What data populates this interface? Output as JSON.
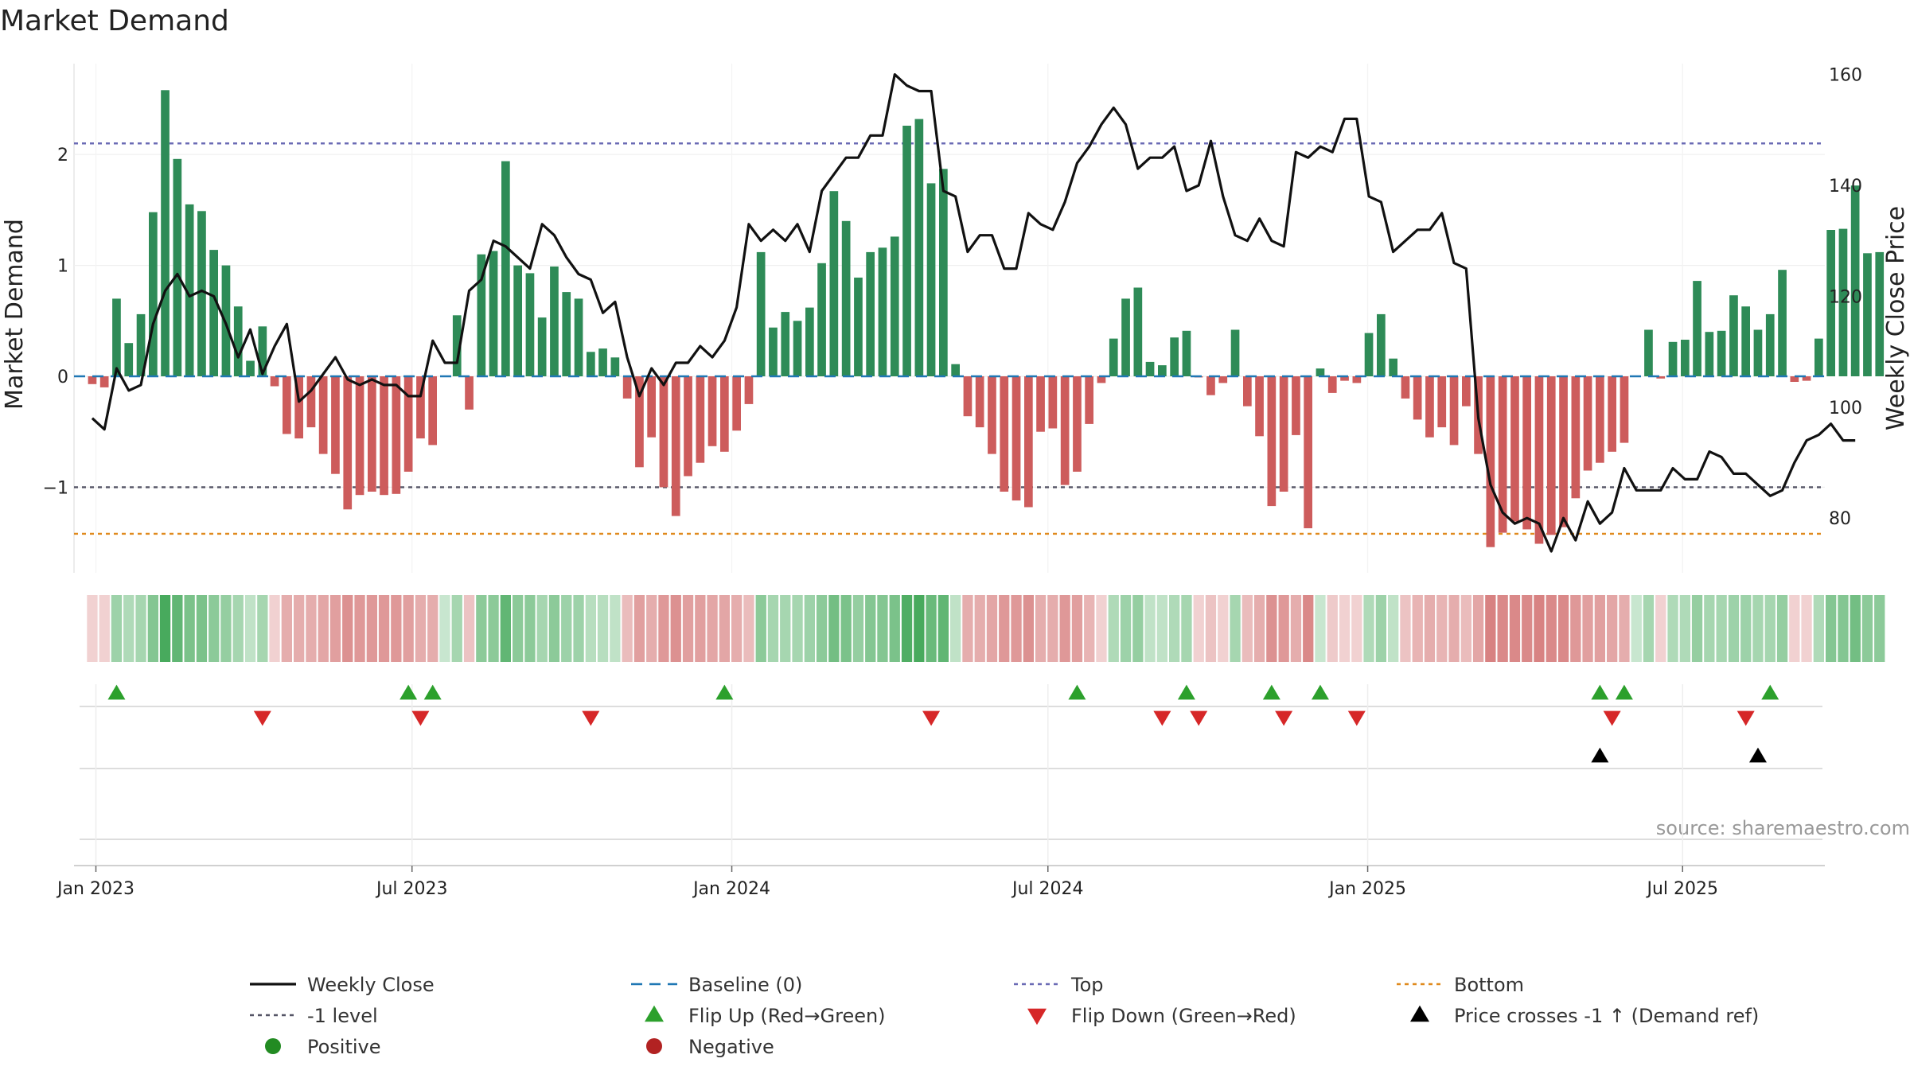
{
  "chart_data": {
    "type": "bar+line",
    "title": "Market Demand",
    "ylabel_left": "Market Demand",
    "ylabel_right": "Weekly Close Price",
    "ylim_left": [
      -1.75,
      2.85
    ],
    "yticks_left": [
      {
        "v": 2,
        "label": "2"
      },
      {
        "v": 1,
        "label": "1"
      },
      {
        "v": 0,
        "label": "0"
      },
      {
        "v": -1,
        "label": "−1"
      }
    ],
    "ylim_right": [
      71,
      164
    ],
    "yticks_right": [
      {
        "v": 160,
        "label": "160"
      },
      {
        "v": 140,
        "label": "140"
      },
      {
        "v": 120,
        "label": "120"
      },
      {
        "v": 100,
        "label": "100"
      },
      {
        "v": 80,
        "label": "80"
      }
    ],
    "x_range": [
      -1.5,
      142.5
    ],
    "x_ticks": [
      {
        "label": "Jan 2023",
        "i": 0.3
      },
      {
        "label": "Jul 2023",
        "i": 26.3
      },
      {
        "label": "Jan 2024",
        "i": 52.6
      },
      {
        "label": "Jul 2024",
        "i": 78.6
      },
      {
        "label": "Jan 2025",
        "i": 104.9
      },
      {
        "label": "Jul 2025",
        "i": 130.8
      }
    ],
    "levels": {
      "top": 2.1,
      "minus_one": -1.0,
      "bottom": -1.42
    },
    "demand": [
      -0.07,
      -0.1,
      0.7,
      0.3,
      0.56,
      1.48,
      2.58,
      1.96,
      1.55,
      1.49,
      1.14,
      1.0,
      0.63,
      0.14,
      0.45,
      -0.09,
      -0.52,
      -0.56,
      -0.46,
      -0.7,
      -0.88,
      -1.2,
      -1.07,
      -1.04,
      -1.07,
      -1.06,
      -0.86,
      -0.56,
      -0.62,
      0.0,
      0.55,
      -0.3,
      1.1,
      1.13,
      1.94,
      1.0,
      0.93,
      0.53,
      0.99,
      0.76,
      0.7,
      0.22,
      0.25,
      0.17,
      -0.2,
      -0.82,
      -0.55,
      -1.0,
      -1.26,
      -0.9,
      -0.78,
      -0.63,
      -0.68,
      -0.49,
      -0.25,
      1.12,
      0.44,
      0.58,
      0.5,
      0.62,
      1.02,
      1.67,
      1.4,
      0.89,
      1.12,
      1.16,
      1.26,
      2.26,
      2.32,
      1.74,
      1.87,
      0.11,
      -0.36,
      -0.46,
      -0.7,
      -1.04,
      -1.12,
      -1.18,
      -0.5,
      -0.47,
      -0.98,
      -0.86,
      -0.43,
      -0.06,
      0.34,
      0.7,
      0.8,
      0.13,
      0.1,
      0.35,
      0.41,
      -0.01,
      -0.17,
      -0.06,
      0.42,
      -0.27,
      -0.54,
      -1.17,
      -1.04,
      -0.53,
      -1.37,
      0.07,
      -0.15,
      -0.04,
      -0.06,
      0.39,
      0.56,
      0.16,
      -0.2,
      -0.39,
      -0.55,
      -0.46,
      -0.62,
      -0.27,
      -0.7,
      -1.54,
      -1.41,
      -1.31,
      -1.38,
      -1.51,
      -1.43,
      -1.36,
      -1.1,
      -0.85,
      -0.78,
      -0.68,
      -0.6,
      0.0,
      0.42,
      -0.02,
      0.31,
      0.33,
      0.86,
      0.4,
      0.41,
      0.73,
      0.63,
      0.42,
      0.56,
      0.96,
      -0.05,
      -0.04,
      0.34,
      1.32,
      1.33,
      1.72,
      1.11,
      1.12
    ],
    "close": [
      98,
      96,
      107,
      103,
      104,
      115,
      121,
      124,
      120,
      121,
      120,
      115,
      109,
      114,
      106,
      111,
      115,
      101,
      103,
      106,
      109,
      105,
      104,
      105,
      104,
      104,
      102,
      102,
      112,
      108,
      108,
      121,
      123,
      130,
      129,
      127,
      125,
      133,
      131,
      127,
      124,
      123,
      117,
      119,
      109,
      102,
      107,
      104,
      108,
      108,
      111,
      109,
      112,
      118,
      133,
      130,
      132,
      130,
      133,
      128,
      139,
      142,
      145,
      145,
      149,
      149,
      160,
      158,
      157,
      157,
      139,
      138,
      128,
      131,
      131,
      125,
      125,
      135,
      133,
      132,
      137,
      144,
      147,
      151,
      154,
      151,
      143,
      145,
      145,
      147,
      139,
      140,
      148,
      138,
      131,
      130,
      134,
      130,
      129,
      146,
      145,
      147,
      146,
      152,
      152,
      138,
      137,
      128,
      130,
      132,
      132,
      135,
      126,
      125,
      98,
      86,
      81,
      79,
      80,
      79,
      74,
      80,
      76,
      83,
      79,
      81,
      89,
      85,
      85,
      85,
      89,
      87,
      87,
      92,
      91,
      88,
      88,
      86,
      84,
      85,
      90,
      94,
      95,
      97,
      94,
      94
    ],
    "color_strip_intensity": [
      0.1,
      0.1,
      0.35,
      0.25,
      0.3,
      0.5,
      0.85,
      0.7,
      0.55,
      0.55,
      0.45,
      0.4,
      0.3,
      0.15,
      0.3,
      0.1,
      0.35,
      0.35,
      0.35,
      0.4,
      0.45,
      0.55,
      0.5,
      0.5,
      0.5,
      0.5,
      0.45,
      0.35,
      0.35,
      0.1,
      0.3,
      0.2,
      0.45,
      0.45,
      0.7,
      0.45,
      0.45,
      0.3,
      0.45,
      0.35,
      0.35,
      0.2,
      0.2,
      0.15,
      0.25,
      0.45,
      0.35,
      0.5,
      0.55,
      0.45,
      0.45,
      0.4,
      0.4,
      0.35,
      0.25,
      0.45,
      0.3,
      0.3,
      0.3,
      0.35,
      0.45,
      0.6,
      0.55,
      0.4,
      0.5,
      0.5,
      0.55,
      0.8,
      0.85,
      0.65,
      0.7,
      0.15,
      0.35,
      0.35,
      0.4,
      0.5,
      0.5,
      0.55,
      0.35,
      0.35,
      0.5,
      0.45,
      0.3,
      0.1,
      0.25,
      0.35,
      0.4,
      0.15,
      0.15,
      0.25,
      0.3,
      0.1,
      0.2,
      0.1,
      0.3,
      0.25,
      0.35,
      0.55,
      0.5,
      0.35,
      0.6,
      0.1,
      0.15,
      0.1,
      0.1,
      0.25,
      0.35,
      0.15,
      0.2,
      0.3,
      0.35,
      0.3,
      0.35,
      0.25,
      0.4,
      0.65,
      0.6,
      0.6,
      0.6,
      0.65,
      0.6,
      0.6,
      0.5,
      0.45,
      0.45,
      0.4,
      0.35,
      0.1,
      0.3,
      0.1,
      0.25,
      0.25,
      0.4,
      0.3,
      0.3,
      0.35,
      0.35,
      0.3,
      0.3,
      0.4,
      0.1,
      0.1,
      0.25,
      0.5,
      0.5,
      0.6,
      0.45,
      0.45
    ],
    "flip_up": [
      2,
      26,
      28,
      52,
      81,
      90,
      97,
      101,
      124,
      126,
      138
    ],
    "flip_down": [
      14,
      27,
      41,
      69,
      88,
      91,
      98,
      104,
      125,
      136
    ],
    "price_cross_up": [
      124,
      137
    ],
    "legend": [
      {
        "label": "Weekly Close",
        "marker": "line"
      },
      {
        "label": "Baseline (0)",
        "marker": "dash-blue"
      },
      {
        "label": "Top",
        "marker": "dot-purple"
      },
      {
        "label": "Bottom",
        "marker": "dot-orange"
      },
      {
        "label": "-1 level",
        "marker": "dot-gray"
      },
      {
        "label": "Flip Up (Red→Green)",
        "marker": "triangle-up-green"
      },
      {
        "label": "Flip Down (Green→Red)",
        "marker": "triangle-down-red"
      },
      {
        "label": "Price crosses -1 ↑ (Demand ref)",
        "marker": "triangle-up-black"
      },
      {
        "label": "Positive",
        "marker": "circle-green"
      },
      {
        "label": "Negative",
        "marker": "circle-red"
      }
    ],
    "source": "source: sharemaestro.com"
  },
  "colors": {
    "positive_bar": "#2e8b57",
    "negative_bar": "#cd5c5c",
    "price_line": "#111111",
    "baseline": "#1f77b4",
    "top_line": "#6b6bb5",
    "minus_one_line": "#555566",
    "bottom_line": "#e08a1e",
    "flip_up": "#2ca02c",
    "flip_down": "#d62728",
    "cross_up": "#000000",
    "legend_positive": "#228b22",
    "legend_negative": "#b22222"
  }
}
